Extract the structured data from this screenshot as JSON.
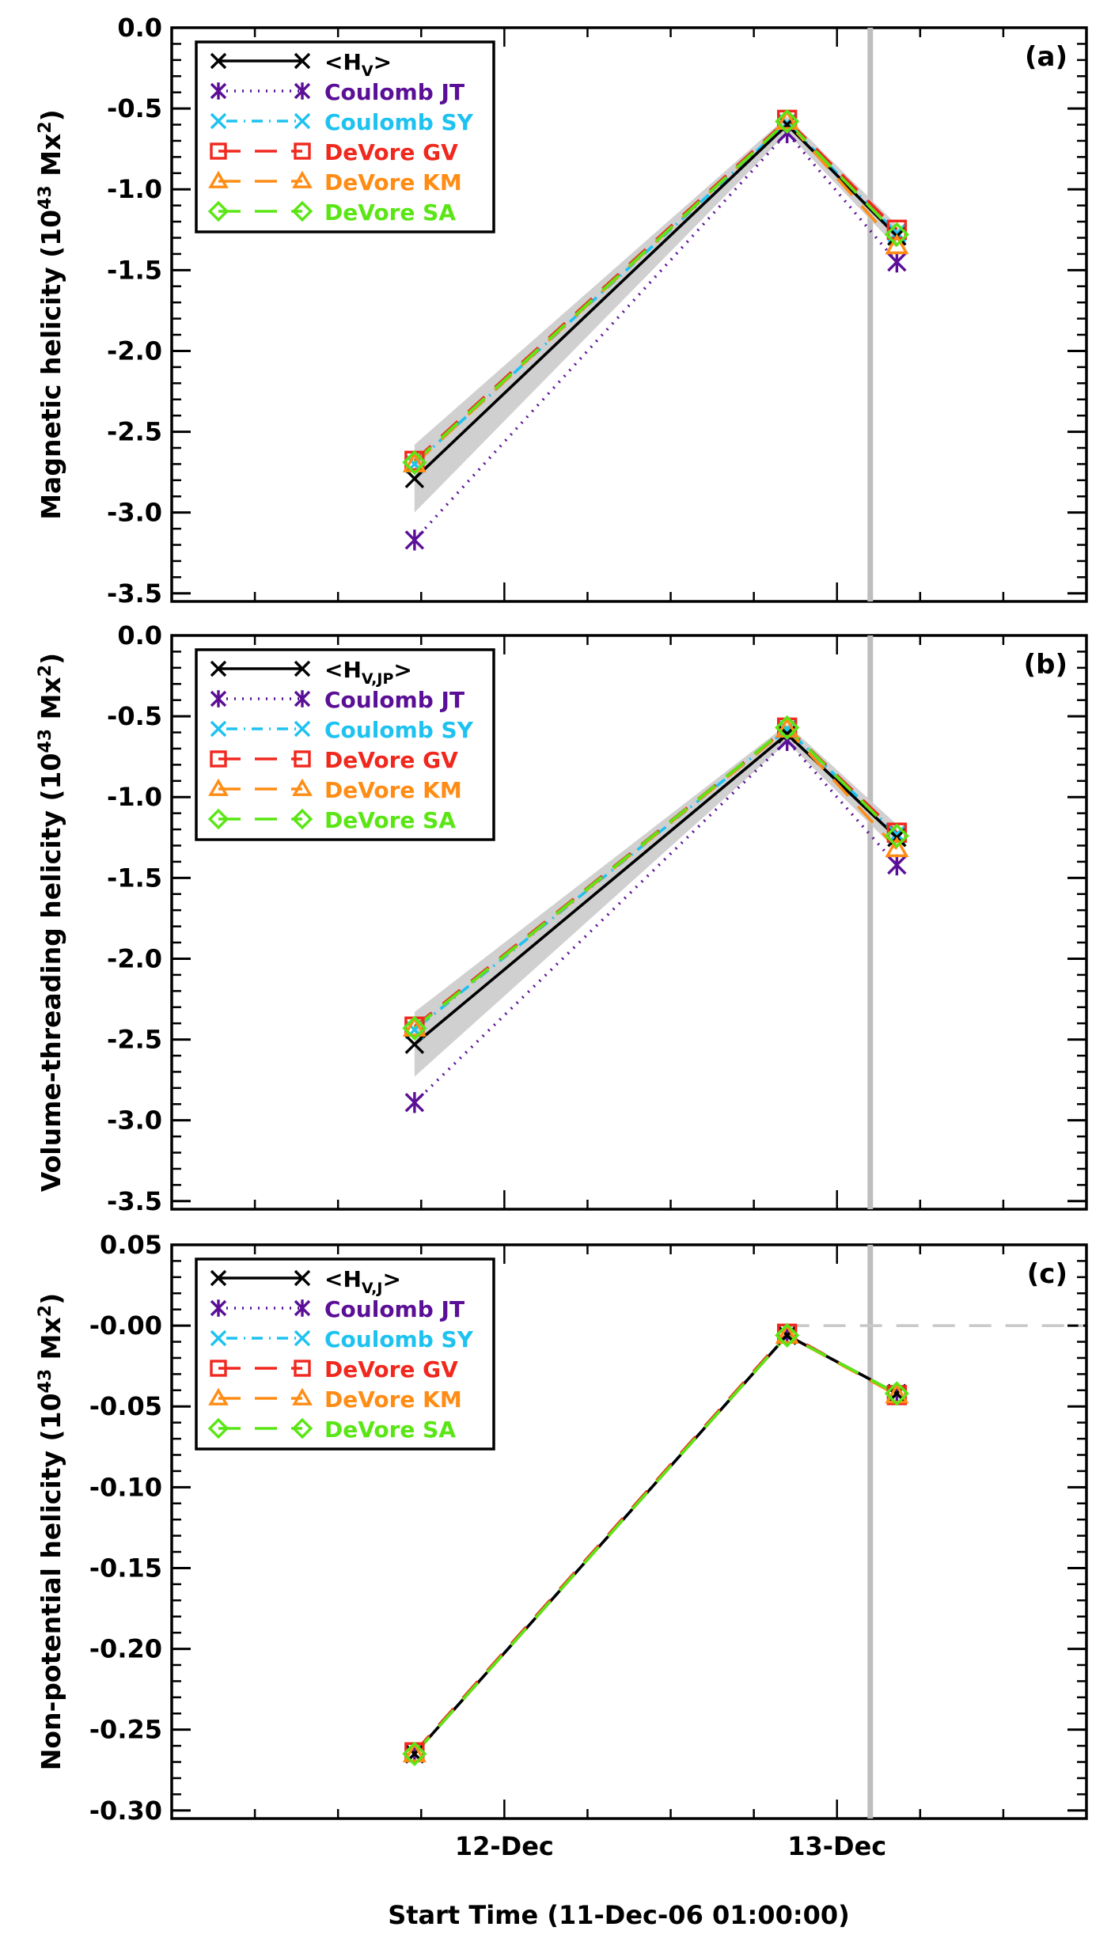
{
  "figure": {
    "xlabel": "Start Time (11-Dec-06 01:00:00)",
    "x_axis": {
      "ticks": [
        {
          "x": 1.0,
          "label": "12-Dec"
        },
        {
          "x": 2.0,
          "label": "13-Dec"
        }
      ],
      "xlim": [
        0.0,
        2.75
      ]
    },
    "series_styles": [
      {
        "key": "mean",
        "color": "#000000",
        "dash": "",
        "marker": "x"
      },
      {
        "key": "jt",
        "color": "#5a0f96",
        "dash": "2,8",
        "marker": "asterisk"
      },
      {
        "key": "sy",
        "color": "#1ec2f0",
        "dash": "2,8,14,8",
        "marker": "x"
      },
      {
        "key": "gv",
        "color": "#f0281e",
        "dash": "28,18",
        "marker": "square"
      },
      {
        "key": "km",
        "color": "#ff8c14",
        "dash": "28,18",
        "marker": "triangle"
      },
      {
        "key": "sa",
        "color": "#5ae614",
        "dash": "28,18",
        "marker": "diamond"
      }
    ],
    "band_color": "#c8c8c8",
    "vline": {
      "x": 2.1,
      "color": "#bebebe"
    }
  },
  "chart_data": [
    {
      "type": "line",
      "panel_label": "(a)",
      "title": "",
      "ylabel": "Magnetic helicity (10^43 Mx^2)",
      "ylabel_main": "Magnetic helicity",
      "ylabel_unit": "(10",
      "ylabel_exp": "43",
      "ylabel_unit2": " Mx",
      "ylabel_exp2": "2",
      "ylabel_end": ")",
      "ylim": [
        -3.55,
        0.0
      ],
      "yticks": [
        0.0,
        -0.5,
        -1.0,
        -1.5,
        -2.0,
        -2.5,
        -3.0,
        -3.5
      ],
      "ytick_labels": [
        "0.0",
        "-0.5",
        "-1.0",
        "-1.5",
        "-2.0",
        "-2.5",
        "-3.0",
        "-3.5"
      ],
      "x": [
        0.73,
        1.85,
        2.18
      ],
      "series": [
        {
          "name": "<HV>",
          "legend_main": "<H",
          "legend_sub": "V",
          "legend_end": ">",
          "values": [
            -2.79,
            -0.6,
            -1.29
          ]
        },
        {
          "name": "Coulomb JT",
          "values": [
            -3.17,
            -0.65,
            -1.45
          ]
        },
        {
          "name": "Coulomb SY",
          "values": [
            -2.7,
            -0.59,
            -1.27
          ]
        },
        {
          "name": "DeVore GV",
          "values": [
            -2.68,
            -0.57,
            -1.25
          ]
        },
        {
          "name": "DeVore KM",
          "values": [
            -2.7,
            -0.58,
            -1.35
          ]
        },
        {
          "name": "DeVore SA",
          "values": [
            -2.69,
            -0.58,
            -1.28
          ]
        }
      ],
      "band": {
        "upper": [
          -2.58,
          -0.55,
          -1.22
        ],
        "lower": [
          -3.0,
          -0.65,
          -1.36
        ]
      }
    },
    {
      "type": "line",
      "panel_label": "(b)",
      "title": "",
      "ylabel": "Volume-threading helicity (10^43 Mx^2)",
      "ylabel_main": "Volume-threading helicity",
      "ylabel_unit": "(10",
      "ylabel_exp": "43",
      "ylabel_unit2": " Mx",
      "ylabel_exp2": "2",
      "ylabel_end": ")",
      "ylim": [
        -3.55,
        0.0
      ],
      "yticks": [
        0.0,
        -0.5,
        -1.0,
        -1.5,
        -2.0,
        -2.5,
        -3.0,
        -3.5
      ],
      "ytick_labels": [
        "0.0",
        "-0.5",
        "-1.0",
        "-1.5",
        "-2.0",
        "-2.5",
        "-3.0",
        "-3.5"
      ],
      "x": [
        0.73,
        1.85,
        2.18
      ],
      "series": [
        {
          "name": "<HV,JP>",
          "legend_main": "<H",
          "legend_sub": "V,JP",
          "legend_end": ">",
          "values": [
            -2.53,
            -0.61,
            -1.25
          ]
        },
        {
          "name": "Coulomb JT",
          "values": [
            -2.89,
            -0.65,
            -1.42
          ]
        },
        {
          "name": "Coulomb SY",
          "values": [
            -2.44,
            -0.58,
            -1.23
          ]
        },
        {
          "name": "DeVore GV",
          "values": [
            -2.42,
            -0.57,
            -1.22
          ]
        },
        {
          "name": "DeVore KM",
          "values": [
            -2.43,
            -0.58,
            -1.32
          ]
        },
        {
          "name": "DeVore SA",
          "values": [
            -2.43,
            -0.57,
            -1.24
          ]
        }
      ],
      "band": {
        "upper": [
          -2.33,
          -0.55,
          -1.17
        ],
        "lower": [
          -2.73,
          -0.66,
          -1.33
        ]
      }
    },
    {
      "type": "line",
      "panel_label": "(c)",
      "title": "",
      "ylabel": "Non-potential helicity (10^43 Mx^2)",
      "ylabel_main": "Non-potential helicity",
      "ylabel_unit": "(10",
      "ylabel_exp": "43",
      "ylabel_unit2": " Mx",
      "ylabel_exp2": "2",
      "ylabel_end": ")",
      "ylim": [
        -0.305,
        0.055
      ],
      "yticks": [
        0.05,
        0.0,
        -0.05,
        -0.1,
        -0.15,
        -0.2,
        -0.25,
        -0.3
      ],
      "ytick_labels": [
        "0.05",
        "-0.00",
        "-0.05",
        "-0.10",
        "-0.15",
        "-0.20",
        "-0.25",
        "-0.30"
      ],
      "hline": 0.0,
      "x": [
        0.73,
        1.85,
        2.18
      ],
      "series": [
        {
          "name": "<HV,J>",
          "legend_main": "<H",
          "legend_sub": "V,J",
          "legend_end": ">",
          "values": [
            -0.265,
            -0.006,
            -0.042
          ]
        },
        {
          "name": "Coulomb JT",
          "values": [
            -0.265,
            -0.006,
            -0.042
          ]
        },
        {
          "name": "Coulomb SY",
          "values": [
            -0.265,
            -0.006,
            -0.042
          ]
        },
        {
          "name": "DeVore GV",
          "values": [
            -0.264,
            -0.005,
            -0.043
          ]
        },
        {
          "name": "DeVore KM",
          "values": [
            -0.265,
            -0.006,
            -0.043
          ]
        },
        {
          "name": "DeVore SA",
          "values": [
            -0.265,
            -0.006,
            -0.042
          ]
        }
      ]
    }
  ]
}
